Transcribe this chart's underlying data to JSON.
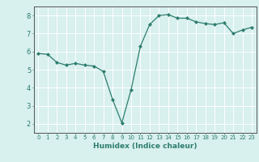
{
  "x": [
    0,
    1,
    2,
    3,
    4,
    5,
    6,
    7,
    8,
    9,
    10,
    11,
    12,
    13,
    14,
    15,
    16,
    17,
    18,
    19,
    20,
    21,
    22,
    23
  ],
  "y": [
    5.9,
    5.85,
    5.4,
    5.25,
    5.35,
    5.25,
    5.2,
    4.9,
    3.35,
    2.05,
    3.9,
    6.3,
    7.5,
    8.0,
    8.05,
    7.85,
    7.85,
    7.65,
    7.55,
    7.5,
    7.6,
    7.0,
    7.2,
    7.35
  ],
  "xlabel": "Humidex (Indice chaleur)",
  "ylabel": "",
  "xlim": [
    -0.5,
    23.5
  ],
  "ylim": [
    1.5,
    8.5
  ],
  "yticks": [
    2,
    3,
    4,
    5,
    6,
    7,
    8
  ],
  "xticks": [
    0,
    1,
    2,
    3,
    4,
    5,
    6,
    7,
    8,
    9,
    10,
    11,
    12,
    13,
    14,
    15,
    16,
    17,
    18,
    19,
    20,
    21,
    22,
    23
  ],
  "line_color": "#2d7d6e",
  "marker": "D",
  "marker_size": 2.0,
  "bg_color": "#d8f0ee",
  "grid_color": "#ffffff",
  "axes_color": "#555555",
  "xlabel_fontsize": 6.5,
  "ytick_fontsize": 6.0,
  "xtick_fontsize": 5.0
}
